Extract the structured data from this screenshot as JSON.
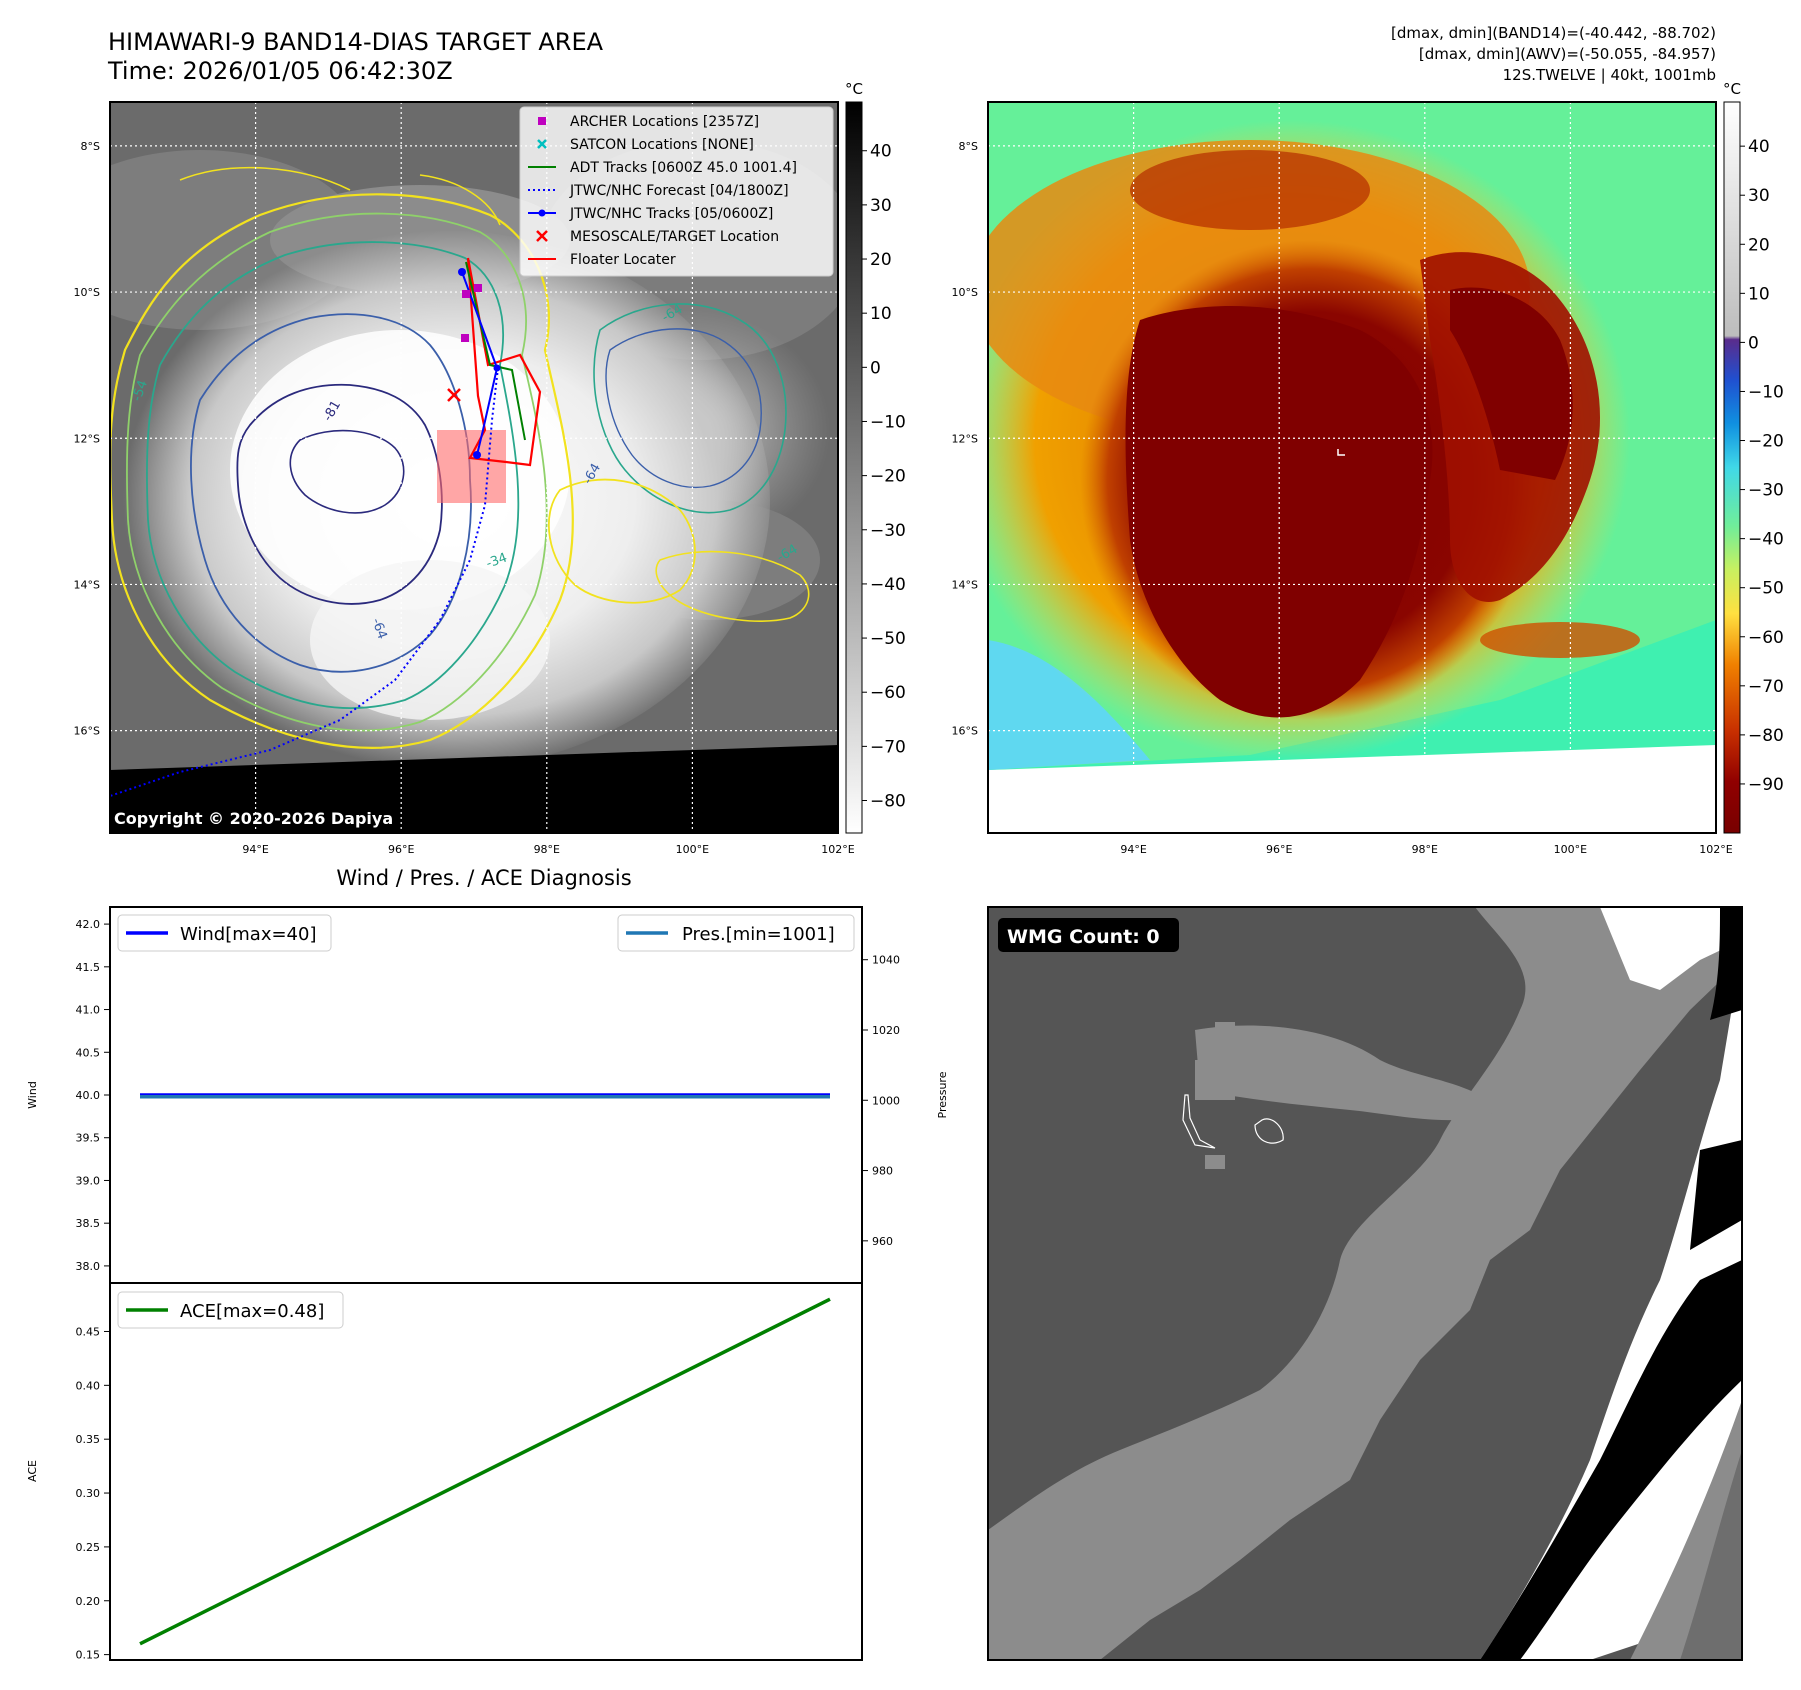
{
  "header": {
    "title_line1": "HIMAWARI-9 BAND14-DIAS TARGET AREA",
    "title_line2": "Time: 2026/01/05 06:42:30Z",
    "info_line1": "[dmax, dmin](BAND14)=(-40.442, -88.702)",
    "info_line2": "[dmax, dmin](AWV)=(-50.055, -84.957)",
    "info_line3": "12S.TWELVE | 40kt, 1001mb"
  },
  "map_axes": {
    "lon_labels": [
      "94°E",
      "96°E",
      "98°E",
      "100°E",
      "102°E"
    ],
    "lat_labels": [
      "8°S",
      "10°S",
      "12°S",
      "14°S",
      "16°S"
    ],
    "lon_values": [
      94,
      96,
      98,
      100,
      102
    ],
    "lat_values": [
      -8,
      -10,
      -12,
      -14,
      -16
    ],
    "lon_range": [
      92.0,
      102.0
    ],
    "lat_range": [
      -7.4,
      -17.4
    ]
  },
  "ir_panel": {
    "colorbar_unit": "°C",
    "colorbar_ticks": [
      "40",
      "30",
      "20",
      "10",
      "0",
      "−10",
      "−20",
      "−30",
      "−40",
      "−50",
      "−60",
      "−70",
      "−80"
    ],
    "colorbar_tick_values": [
      40,
      30,
      20,
      10,
      0,
      -10,
      -20,
      -30,
      -40,
      -50,
      -60,
      -70,
      -80
    ],
    "colorbar_range": [
      49,
      -86
    ],
    "copyright": "Copyright © 2020-2026 Dapiya",
    "contour_labels": [
      "-81",
      "-64",
      "-64",
      "-54",
      "-64",
      "-34",
      "-64"
    ],
    "legend": [
      {
        "label": "ARCHER Locations [2357Z]",
        "color": "#bf00bf",
        "marker": "square"
      },
      {
        "label": "SATCON Locations [NONE]",
        "color": "#00bfbf",
        "marker": "x"
      },
      {
        "label": "ADT Tracks [0600Z 45.0 1001.4]",
        "color": "#008000",
        "marker": "line"
      },
      {
        "label": "JTWC/NHC Forecast [04/1800Z]",
        "color": "#0000ff",
        "marker": "dotted"
      },
      {
        "label": "JTWC/NHC Tracks [05/0600Z]",
        "color": "#0000ff",
        "marker": "line-dot"
      },
      {
        "label": "MESOSCALE/TARGET Location",
        "color": "#ff0000",
        "marker": "x"
      },
      {
        "label": "Floater Locater",
        "color": "#ff0000",
        "marker": "line"
      }
    ]
  },
  "awv_panel": {
    "colorbar_unit": "°C",
    "colorbar_ticks": [
      "40",
      "30",
      "20",
      "10",
      "0",
      "−10",
      "−20",
      "−30",
      "−40",
      "−50",
      "−60",
      "−70",
      "−80",
      "−90"
    ],
    "colorbar_tick_values": [
      40,
      30,
      20,
      10,
      0,
      -10,
      -20,
      -30,
      -40,
      -50,
      -60,
      -70,
      -80,
      -90
    ],
    "colorbar_range": [
      49,
      -100
    ]
  },
  "diag_panel": {
    "title": "Wind / Pres. / ACE Diagnosis",
    "wind_ylabel": "Wind",
    "pres_ylabel": "Pressure",
    "ace_ylabel": "ACE",
    "wind_legend": "Wind[max=40]",
    "pres_legend": "Pres.[min=1001]",
    "ace_legend": "ACE[max=0.48]",
    "wind_ticks": [
      "42.0",
      "41.5",
      "41.0",
      "40.5",
      "40.0",
      "39.5",
      "39.0",
      "38.5",
      "38.0"
    ],
    "pres_ticks": [
      "1040",
      "1020",
      "1000",
      "980",
      "960"
    ],
    "ace_ticks": [
      "0.45",
      "0.40",
      "0.35",
      "0.30",
      "0.25",
      "0.20",
      "0.15"
    ]
  },
  "wmg_panel": {
    "badge": "WMG Count: 0"
  },
  "chart_data": [
    {
      "type": "line",
      "title": "Wind / Pres. / ACE Diagnosis",
      "xlabel": "",
      "ylabel": "Wind",
      "ylim": [
        37.8,
        42.2
      ],
      "y2label": "Pressure",
      "y2lim": [
        948,
        1055
      ],
      "series": [
        {
          "name": "Wind[max=40]",
          "color": "#0000ff",
          "x": [
            0,
            1
          ],
          "values": [
            40,
            40
          ]
        },
        {
          "name": "Pres.[min=1001]",
          "color": "#1f77b4",
          "axis": "y2",
          "x": [
            0,
            1
          ],
          "values": [
            1001,
            1001
          ]
        }
      ]
    },
    {
      "type": "line",
      "title": "",
      "xlabel": "",
      "ylabel": "ACE",
      "ylim": [
        0.145,
        0.495
      ],
      "series": [
        {
          "name": "ACE[max=0.48]",
          "color": "#008000",
          "x": [
            0,
            1
          ],
          "values": [
            0.16,
            0.48
          ]
        }
      ]
    }
  ]
}
